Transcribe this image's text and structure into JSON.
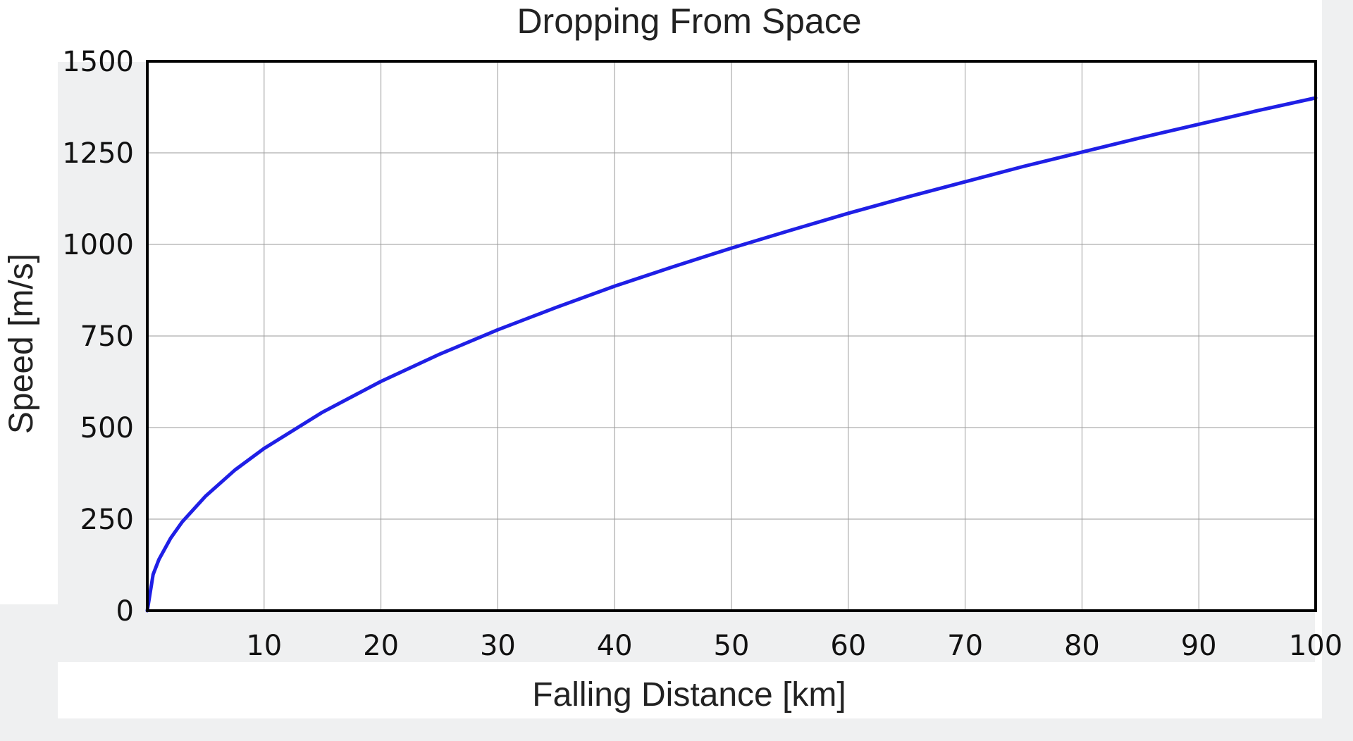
{
  "chart_data": {
    "type": "line",
    "title": "Dropping From Space",
    "xlabel": "Falling Distance [km]",
    "ylabel": "Speed [m/s]",
    "xlim": [
      0,
      100
    ],
    "ylim": [
      0,
      1500
    ],
    "xticks": [
      10,
      20,
      30,
      40,
      50,
      60,
      70,
      80,
      90,
      100
    ],
    "xtick_labels": [
      "10",
      "20",
      "30",
      "40",
      "50",
      "60",
      "70",
      "80",
      "90",
      "100"
    ],
    "yticks": [
      0,
      250,
      500,
      750,
      1000,
      1250,
      1500
    ],
    "ytick_labels": [
      "0",
      "250",
      "500",
      "750",
      "1000",
      "1250",
      "1500"
    ],
    "grid": true,
    "line_color": "#1f1fe6",
    "series": [
      {
        "x": [
          0,
          0.5,
          1,
          2,
          3,
          5,
          7.5,
          10,
          15,
          20,
          25,
          30,
          35,
          40,
          45,
          50,
          55,
          60,
          65,
          70,
          75,
          80,
          85,
          90,
          95,
          100
        ],
        "y": [
          0,
          99,
          140,
          198,
          243,
          313,
          384,
          443,
          542,
          626,
          700,
          767,
          828,
          886,
          939,
          990,
          1038,
          1085,
          1129,
          1171,
          1213,
          1252,
          1291,
          1328,
          1365,
          1400
        ]
      }
    ]
  }
}
